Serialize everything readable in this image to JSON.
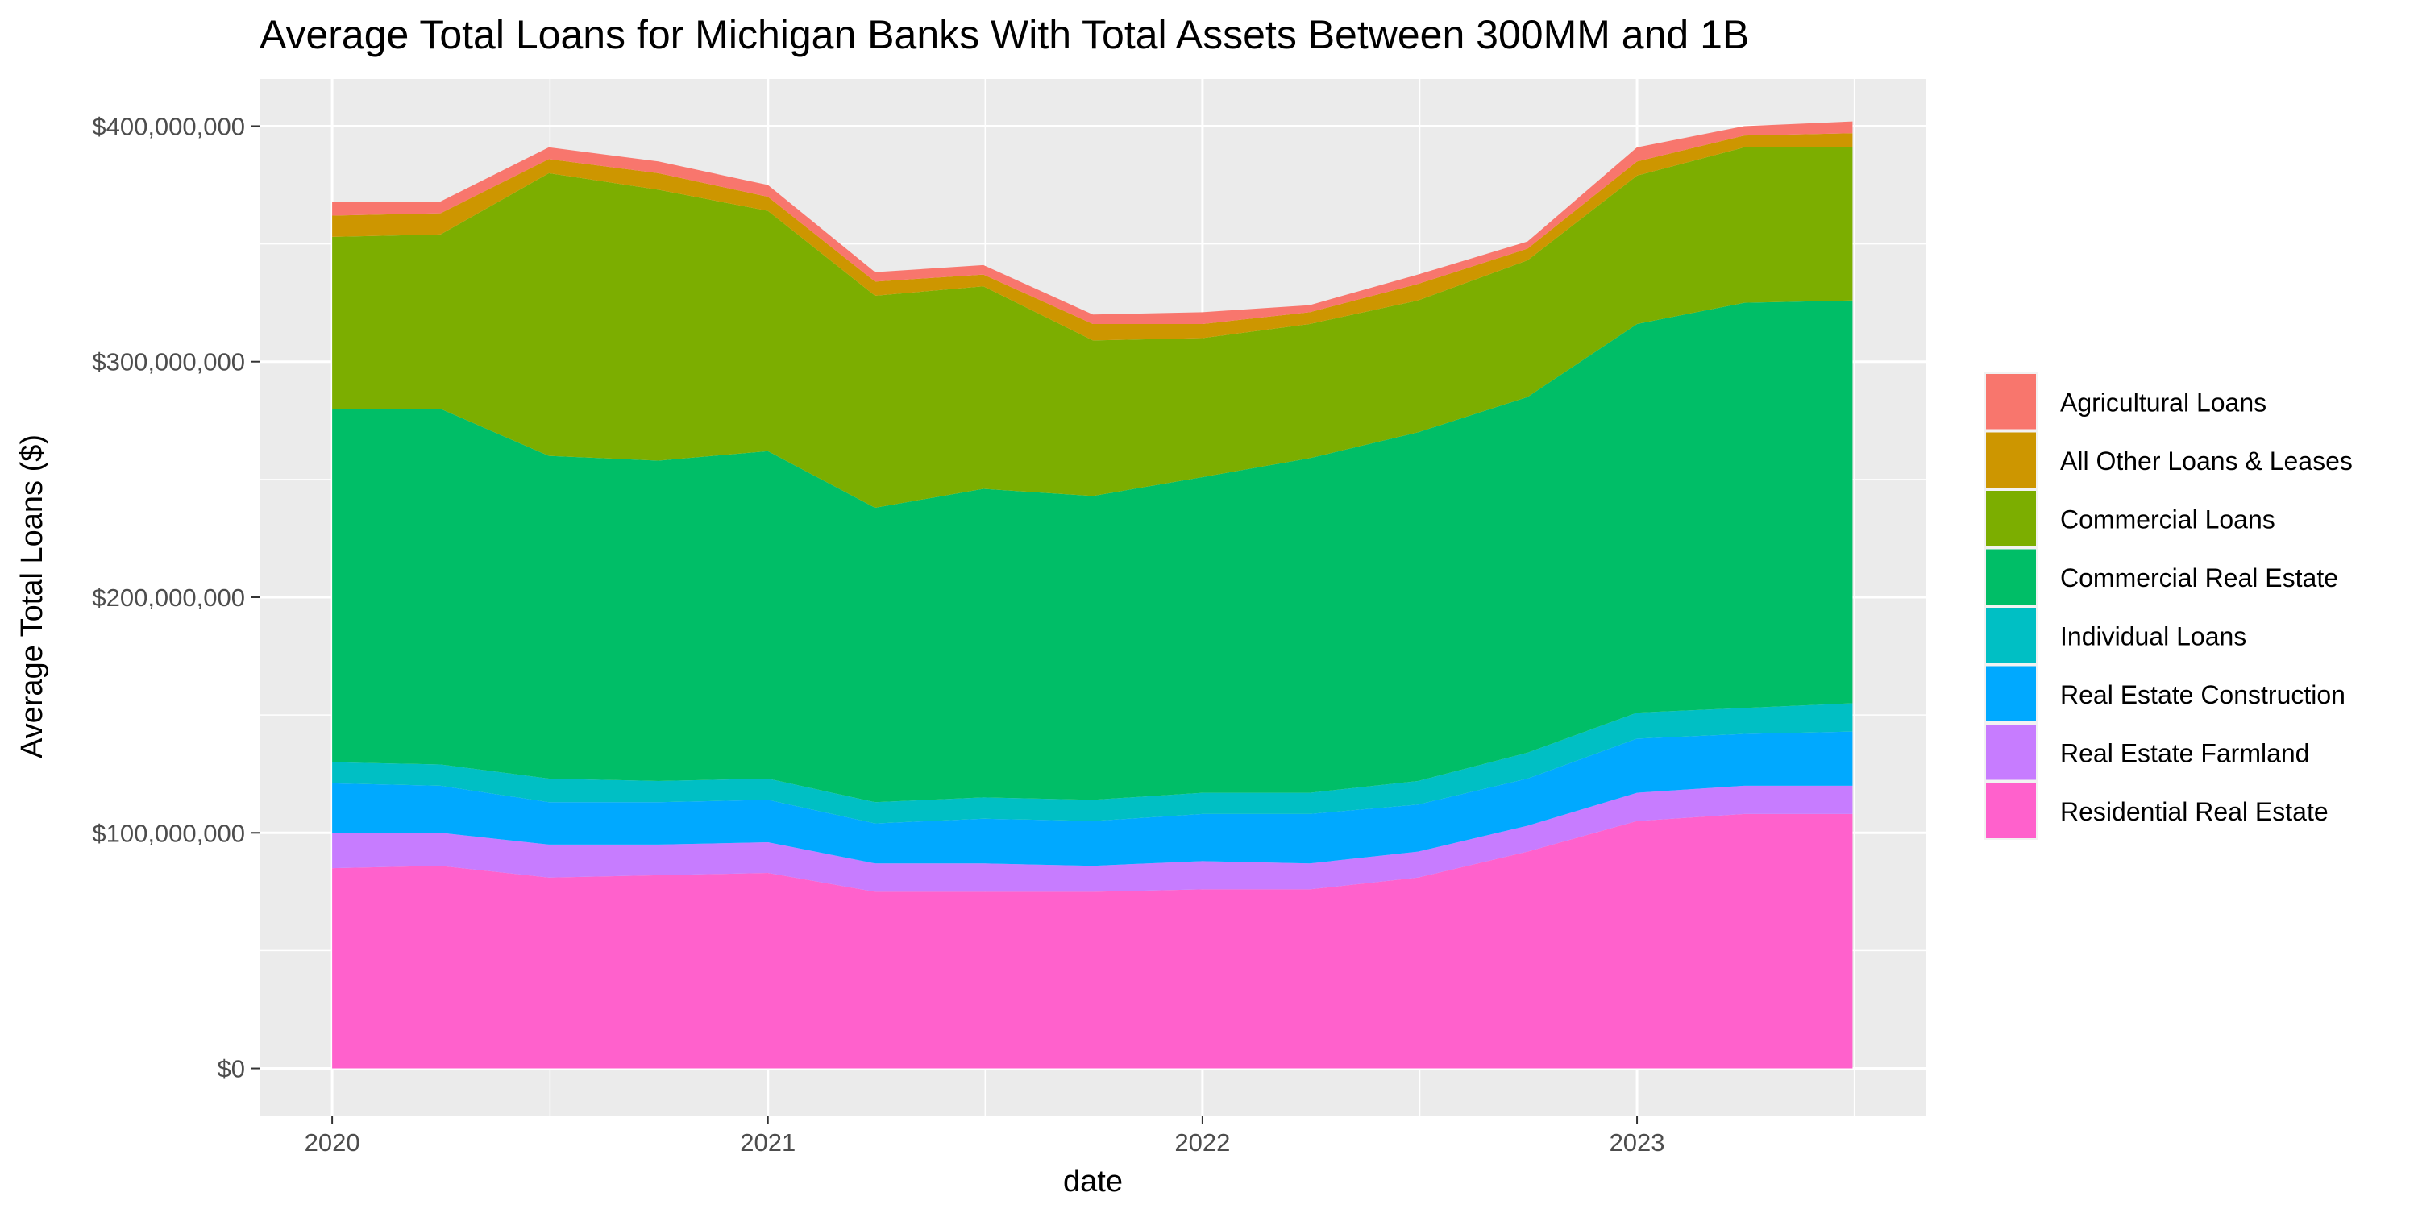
{
  "chart_data": {
    "type": "area",
    "stacked": true,
    "title": "Average Total Loans for Michigan Banks With Total Assets Between 300MM and 1B",
    "xlabel": "date",
    "ylabel": "Average Total Loans ($)",
    "x": [
      "2020-01-01",
      "2020-04-01",
      "2020-07-01",
      "2020-10-01",
      "2021-01-01",
      "2021-04-01",
      "2021-07-01",
      "2021-10-01",
      "2022-01-01",
      "2022-04-01",
      "2022-07-01",
      "2022-10-01",
      "2023-01-01",
      "2023-04-01",
      "2023-07-01"
    ],
    "x_ticks": [
      "2020",
      "2021",
      "2022",
      "2023"
    ],
    "y_ticks": [
      "$0",
      "$100,000,000",
      "$200,000,000",
      "$300,000,000",
      "$400,000,000"
    ],
    "ylim": [
      -20000000,
      420000000
    ],
    "grid": true,
    "legend_position": "right",
    "series": [
      {
        "name": "Residential Real Estate",
        "color": "#FF61CC",
        "values": [
          85000000,
          86000000,
          81000000,
          82000000,
          83000000,
          75000000,
          75000000,
          75000000,
          76000000,
          76000000,
          81000000,
          92000000,
          105000000,
          108000000,
          108000000
        ]
      },
      {
        "name": "Real Estate Farmland",
        "color": "#C77CFF",
        "values": [
          15000000,
          14000000,
          14000000,
          13000000,
          13000000,
          12000000,
          12000000,
          11000000,
          12000000,
          11000000,
          11000000,
          11000000,
          12000000,
          12000000,
          12000000
        ]
      },
      {
        "name": "Real Estate Construction",
        "color": "#00A9FF",
        "values": [
          21000000,
          20000000,
          18000000,
          18000000,
          18000000,
          17000000,
          19000000,
          19000000,
          20000000,
          21000000,
          20000000,
          20000000,
          23000000,
          22000000,
          23000000
        ]
      },
      {
        "name": "Individual Loans",
        "color": "#00BFC4",
        "values": [
          9000000,
          9000000,
          10000000,
          9000000,
          9000000,
          9000000,
          9000000,
          9000000,
          9000000,
          9000000,
          10000000,
          11000000,
          11000000,
          11000000,
          12000000
        ]
      },
      {
        "name": "Commercial Real Estate",
        "color": "#00BE67",
        "values": [
          150000000,
          151000000,
          137000000,
          136000000,
          139000000,
          125000000,
          131000000,
          129000000,
          134000000,
          142000000,
          148000000,
          151000000,
          165000000,
          172000000,
          171000000
        ]
      },
      {
        "name": "Commercial Loans",
        "color": "#7CAE00",
        "values": [
          73000000,
          74000000,
          120000000,
          115000000,
          102000000,
          90000000,
          86000000,
          66000000,
          59000000,
          57000000,
          56000000,
          58000000,
          63000000,
          66000000,
          65000000
        ]
      },
      {
        "name": "All Other Loans & Leases",
        "color": "#CD9600",
        "values": [
          9000000,
          9000000,
          6000000,
          7000000,
          6000000,
          6000000,
          5000000,
          7000000,
          6000000,
          5000000,
          7000000,
          5000000,
          6000000,
          5000000,
          6000000
        ]
      },
      {
        "name": "Agricultural Loans",
        "color": "#F8766D",
        "values": [
          6000000,
          5000000,
          5000000,
          5000000,
          5000000,
          4000000,
          4000000,
          4000000,
          5000000,
          3000000,
          4000000,
          3000000,
          6000000,
          4000000,
          5000000
        ]
      }
    ],
    "legend_order": [
      "Agricultural Loans",
      "All Other Loans & Leases",
      "Commercial Loans",
      "Commercial Real Estate",
      "Individual Loans",
      "Real Estate Construction",
      "Real Estate Farmland",
      "Residential Real Estate"
    ]
  }
}
